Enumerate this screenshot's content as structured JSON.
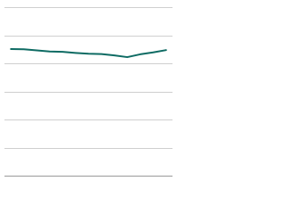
{
  "chart_data": {
    "type": "line",
    "categories": [
      null,
      null,
      null,
      null,
      null,
      null,
      null,
      null,
      null,
      null,
      null,
      null,
      null
    ],
    "series": [
      {
        "color": "#0e6b63",
        "values": [
          45.1,
          45.0,
          44.6,
          44.2,
          44.1,
          43.7,
          43.4,
          43.3,
          42.8,
          42.2,
          43.2,
          43.9,
          44.7
        ]
      }
    ],
    "ylim": [
      0,
      60
    ],
    "yticks": [
      0,
      10,
      20,
      30,
      40,
      50,
      60
    ],
    "grid": true
  }
}
